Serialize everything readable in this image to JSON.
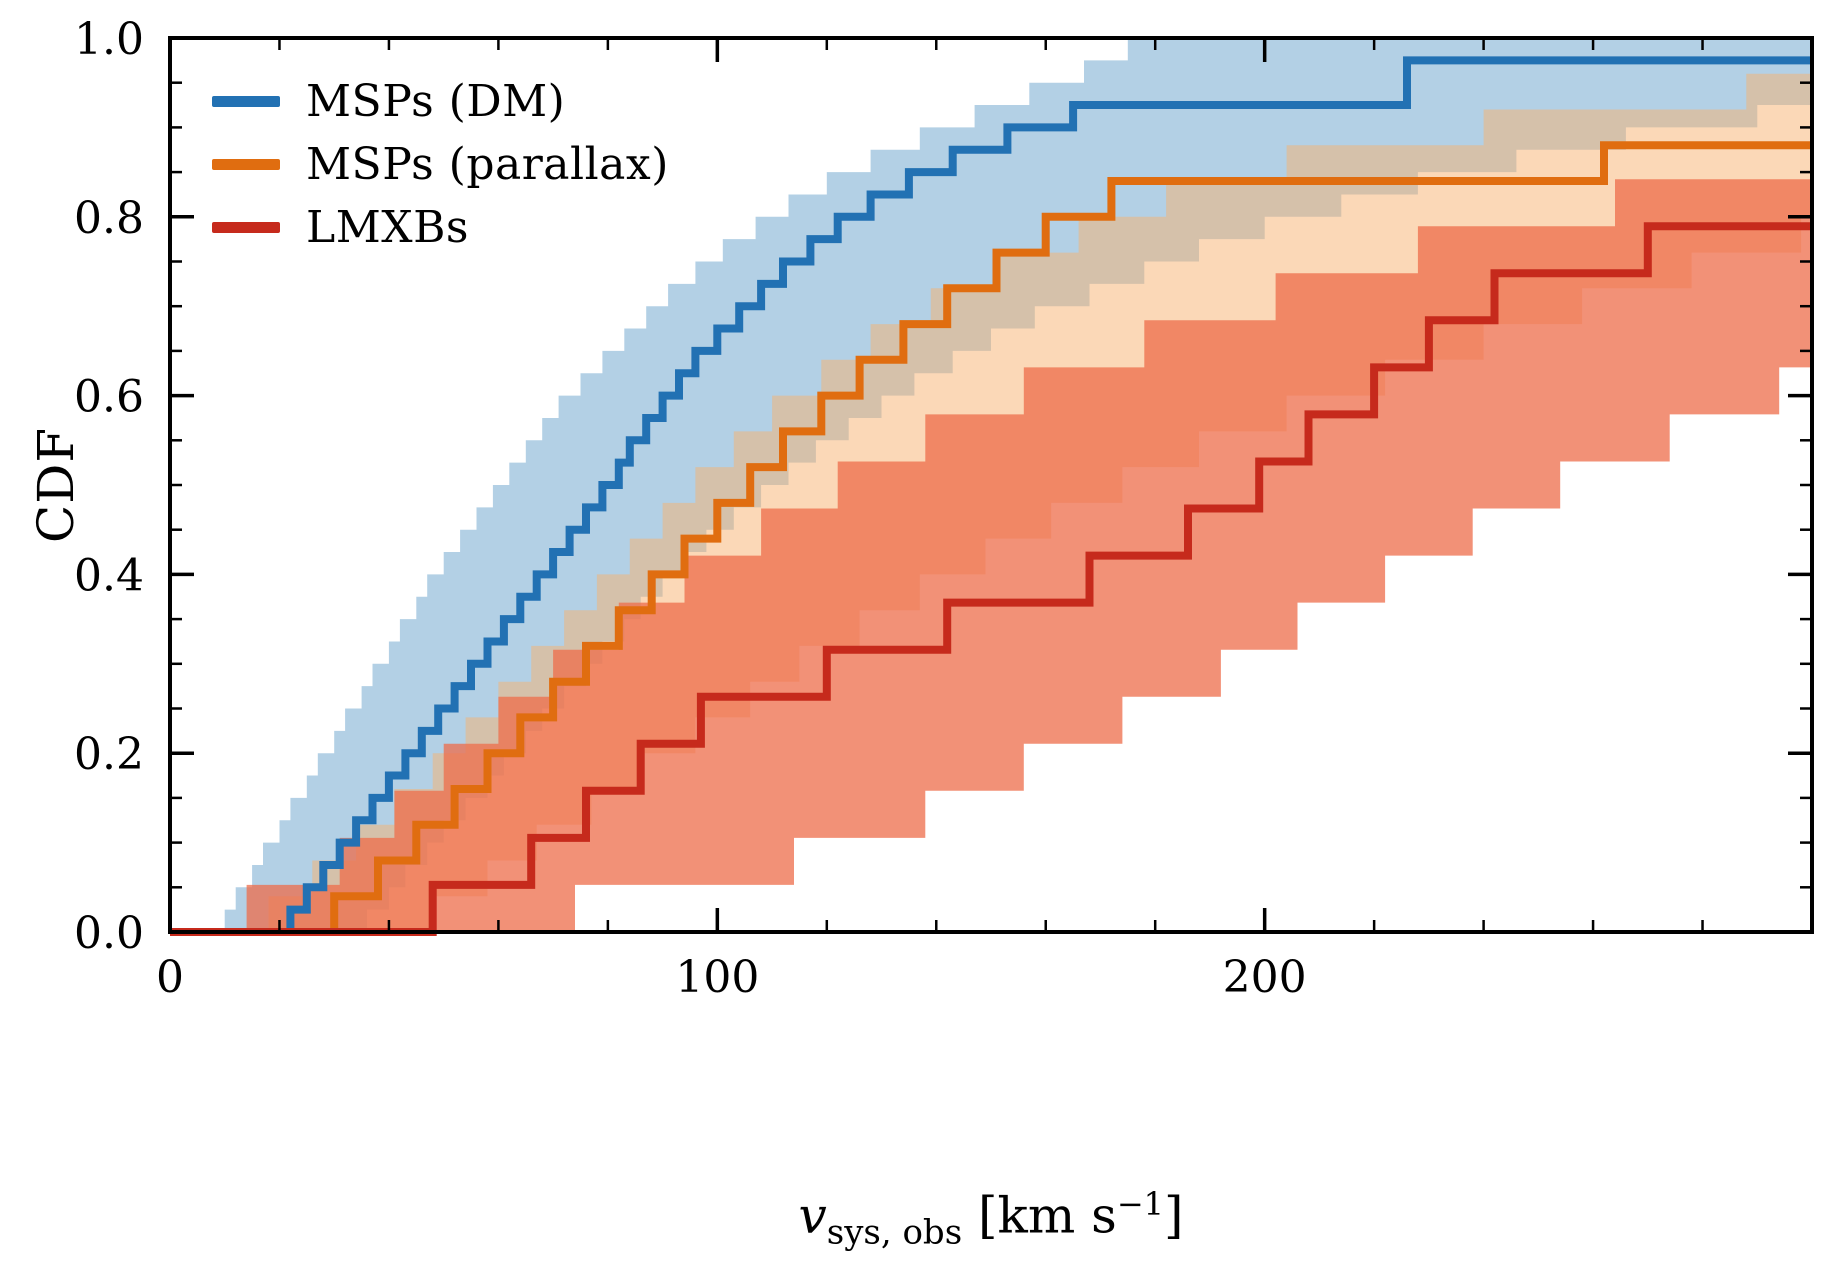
{
  "chart_data": {
    "type": "line",
    "subtype": "step-cdf-with-confidence-bands",
    "title": "",
    "ylabel": "CDF",
    "xlabel": {
      "var": "v",
      "sub": "sys, obs",
      "unit_pre": " [km s",
      "sup": "−1",
      "unit_post": "]"
    },
    "xlim": [
      0,
      300
    ],
    "ylim": [
      0,
      1.0
    ],
    "xticks": [
      0,
      100,
      200
    ],
    "xtick_labels": [
      "0",
      "100",
      "200"
    ],
    "x_minor_step": 20,
    "yticks": [
      0,
      0.2,
      0.4,
      0.6,
      0.8,
      1.0
    ],
    "ytick_labels": [
      "0.0",
      "0.2",
      "0.4",
      "0.6",
      "0.8",
      "1.0"
    ],
    "y_minor_step": 0.05,
    "grid": false,
    "legend_position": "upper left",
    "series": [
      {
        "id": "msp-dm",
        "name": "MSPs (DM)",
        "color": "#2271b3",
        "band_color": "rgba(116,169,207,0.55)",
        "n": 40,
        "samples": [
          22,
          25,
          28,
          31,
          34,
          37,
          40,
          43,
          46,
          49,
          52,
          55,
          58,
          61,
          64,
          67,
          70,
          73,
          76,
          79,
          82,
          84,
          87,
          90,
          93,
          96,
          100,
          104,
          108,
          112,
          117,
          122,
          128,
          135,
          143,
          153,
          165,
          226,
          226,
          340
        ],
        "band_upper": {
          "n": 40,
          "samples": [
            10,
            12,
            15,
            17,
            20,
            22,
            25,
            27,
            30,
            32,
            35,
            37,
            40,
            42,
            45,
            47,
            50,
            53,
            56,
            59,
            62,
            65,
            68,
            71,
            75,
            79,
            83,
            87,
            91,
            96,
            101,
            107,
            113,
            120,
            128,
            137,
            147,
            157,
            167,
            175
          ]
        },
        "band_lower": {
          "n": 40,
          "samples": [
            36,
            40,
            43,
            47,
            50,
            54,
            58,
            61,
            65,
            68,
            72,
            76,
            79,
            83,
            86,
            90,
            94,
            98,
            103,
            108,
            113,
            118,
            124,
            130,
            136,
            143,
            150,
            158,
            168,
            178,
            188,
            200,
            214,
            228,
            246,
            266,
            290,
            320,
            350,
            380
          ]
        }
      },
      {
        "id": "msp-parallax",
        "name": "MSPs (parallax)",
        "color": "#e06d10",
        "band_color": "rgba(247,178,112,0.5)",
        "n": 25,
        "samples": [
          30,
          38,
          45,
          52,
          58,
          64,
          70,
          76,
          82,
          88,
          94,
          100,
          106,
          112,
          119,
          126,
          134,
          142,
          151,
          160,
          172,
          262,
          330,
          340,
          350
        ],
        "band_upper": {
          "n": 25,
          "samples": [
            18,
            26,
            34,
            41,
            48,
            54,
            60,
            66,
            72,
            78,
            84,
            90,
            96,
            103,
            110,
            119,
            128,
            139,
            151,
            166,
            182,
            204,
            240,
            288,
            360
          ]
        },
        "band_lower": {
          "n": 25,
          "samples": [
            48,
            58,
            67,
            77,
            86,
            96,
            106,
            115,
            126,
            137,
            149,
            161,
            174,
            188,
            204,
            222,
            240,
            258,
            278,
            298,
            330,
            340,
            350,
            360,
            370
          ]
        }
      },
      {
        "id": "lmxb",
        "name": "LMXBs",
        "color": "#c62a1c",
        "band_color": "rgba(238,108,74,0.75)",
        "n": 19,
        "samples": [
          48,
          66,
          76,
          86,
          97,
          120,
          142,
          168,
          186,
          199,
          208,
          220,
          230,
          242,
          270,
          320,
          330,
          340,
          350
        ],
        "band_upper": {
          "n": 19,
          "samples": [
            14,
            31,
            41,
            50,
            60,
            70,
            82,
            94,
            108,
            122,
            138,
            156,
            178,
            202,
            228,
            264,
            330,
            340,
            350
          ]
        },
        "band_lower": {
          "n": 19,
          "samples": [
            74,
            114,
            138,
            156,
            174,
            192,
            206,
            222,
            238,
            254,
            274,
            294,
            330,
            340,
            350,
            360,
            370,
            380,
            390
          ]
        }
      }
    ]
  }
}
